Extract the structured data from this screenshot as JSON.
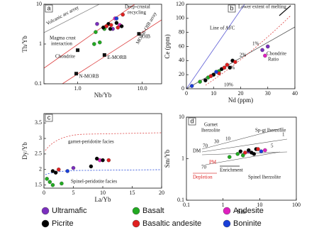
{
  "legend": [
    {
      "name": "Ultramafic",
      "color": "#7b2fbe"
    },
    {
      "name": "Basalt",
      "color": "#22aa22"
    },
    {
      "name": "Andesite",
      "color": "#e020c0"
    },
    {
      "name": "Picrite",
      "color": "#000000"
    },
    {
      "name": "Basaltic andesite",
      "color": "#e02020"
    },
    {
      "name": "Boninite",
      "color": "#1a3fd8"
    }
  ],
  "chart_data": [
    {
      "type": "scatter",
      "x_label": "Nb/Yb",
      "y_label": "Th/Yb",
      "xscale": "log",
      "yscale": "log",
      "xlim": [
        0.3,
        20
      ],
      "ylim": [
        0.1,
        10
      ],
      "xticks": [
        {
          "value": 1,
          "label": "1.0"
        },
        {
          "value": 10,
          "label": "10.0"
        }
      ],
      "yticks": [
        0.1,
        1,
        10
      ],
      "series": [
        {
          "color": "#7b2fbe",
          "x": [
            2.0,
            3.5
          ],
          "y": [
            3.2,
            2.4
          ]
        },
        {
          "color": "#22aa22",
          "x": [
            1.8,
            2.2,
            2.6,
            1.9
          ],
          "y": [
            1.0,
            1.1,
            2.4,
            2.0
          ]
        },
        {
          "color": "#e020c0",
          "x": [
            3.8,
            4.5
          ],
          "y": [
            4.4,
            3.0
          ]
        },
        {
          "color": "#000000",
          "x": [
            2.5,
            3.0,
            3.2,
            4.0,
            4.8
          ],
          "y": [
            2.6,
            3.2,
            2.4,
            3.4,
            2.8
          ]
        },
        {
          "color": "#e02020",
          "x": [
            2.8,
            3.3,
            4.2,
            5.0
          ],
          "y": [
            2.8,
            3.0,
            2.6,
            5.5
          ]
        },
        {
          "color": "#1a3fd8",
          "x": [
            4.0
          ],
          "y": [
            4.4
          ]
        }
      ],
      "references": [
        {
          "label": "N-MORB",
          "x": 0.95,
          "y": 0.18
        },
        {
          "label": "E-MORB",
          "x": 2.6,
          "y": 0.53
        },
        {
          "label": "OIB",
          "x": 8.9,
          "y": 1.8
        },
        {
          "x": 1.0,
          "y": 0.7
        }
      ],
      "annotations": [
        "a",
        "Volcanic arc array",
        "Deep-crustal",
        "recycling",
        "Magma crust",
        "interaction",
        "Chondrite",
        "MORB-OIB array"
      ]
    },
    {
      "type": "scatter",
      "x_label": "Nd (ppm)",
      "y_label": "Ce (ppm)",
      "xlim": [
        0,
        40
      ],
      "ylim": [
        0,
        120
      ],
      "xticks": [
        0,
        10,
        20,
        30,
        40
      ],
      "yticks": [
        0,
        20,
        40,
        60,
        80,
        100,
        120
      ],
      "series": [
        {
          "color": "#7b2fbe",
          "x": [
            28,
            30
          ],
          "y": [
            55,
            60
          ]
        },
        {
          "color": "#22aa22",
          "x": [
            5,
            8,
            10,
            12
          ],
          "y": [
            10,
            16,
            20,
            25
          ]
        },
        {
          "color": "#e020c0",
          "x": [
            29
          ],
          "y": [
            47
          ]
        },
        {
          "color": "#000000",
          "x": [
            7,
            10,
            13,
            16,
            17
          ],
          "y": [
            12,
            20,
            28,
            30,
            40
          ]
        },
        {
          "color": "#e02020",
          "x": [
            9,
            12,
            14,
            15,
            18
          ],
          "y": [
            18,
            22,
            30,
            34,
            38
          ]
        },
        {
          "color": "#1a3fd8",
          "x": [
            2,
            11
          ],
          "y": [
            4,
            24
          ]
        }
      ],
      "annotations": [
        "b",
        "Lower extent of melting",
        "Line of AFC",
        "1%",
        "2%",
        "5%",
        "10%",
        "Chondrite",
        "Ratio"
      ]
    },
    {
      "type": "scatter",
      "x_label": "La/Yb",
      "y_label": "Dy/Yb",
      "xlim": [
        0,
        20
      ],
      "ylim": [
        1.4,
        3.8
      ],
      "xticks": [
        0,
        5,
        10,
        15,
        20
      ],
      "yticks": [
        1.5,
        2,
        2.5,
        3,
        3.5
      ],
      "series": [
        {
          "color": "#7b2fbe",
          "x": [
            5
          ],
          "y": [
            2.05
          ]
        },
        {
          "color": "#22aa22",
          "x": [
            0.5,
            1,
            1.5,
            3
          ],
          "y": [
            1.7,
            1.6,
            1.5,
            1.55
          ]
        },
        {
          "color": "#e020c0",
          "x": [
            9.5
          ],
          "y": [
            2.3
          ]
        },
        {
          "color": "#000000",
          "x": [
            1.5,
            2,
            8,
            9,
            10
          ],
          "y": [
            1.95,
            1.9,
            2.1,
            2.35,
            2.3
          ]
        },
        {
          "color": "#e02020",
          "x": [
            2.5,
            11
          ],
          "y": [
            2.0,
            2.3
          ]
        },
        {
          "color": "#1a3fd8",
          "x": [
            4
          ],
          "y": [
            1.95
          ]
        }
      ],
      "annotations": [
        "c",
        "garnet-peridotite facies",
        "Spinel-peridotite facies"
      ]
    },
    {
      "type": "scatter",
      "x_label": "Sm",
      "y_label": "Sm/Yb",
      "xscale": "log",
      "yscale": "log",
      "xlim": [
        0.1,
        100
      ],
      "ylim": [
        0.1,
        10
      ],
      "xticks": [
        0.1,
        1,
        10,
        100
      ],
      "yticks": [
        0.1,
        1,
        10
      ],
      "series": [
        {
          "color": "#7b2fbe",
          "x": [
            5
          ],
          "y": [
            1.5
          ]
        },
        {
          "color": "#22aa22",
          "x": [
            1.5,
            2.5,
            3.5
          ],
          "y": [
            1.1,
            1.3,
            1.2
          ]
        },
        {
          "color": "#e020c0",
          "x": [
            14
          ],
          "y": [
            1.6
          ]
        },
        {
          "color": "#000000",
          "x": [
            3,
            5,
            6,
            8,
            7
          ],
          "y": [
            1.5,
            1.6,
            1.4,
            1.7,
            1.3
          ]
        },
        {
          "color": "#e02020",
          "x": [
            4,
            9
          ],
          "y": [
            1.4,
            1.7
          ]
        },
        {
          "color": "#1a3fd8",
          "x": [
            11
          ],
          "y": [
            1.5
          ]
        }
      ],
      "annotations": [
        "d",
        "Garnet",
        "lherzolite",
        "Sp-gt lherzolite",
        "DM",
        "PM",
        "Depletion",
        "Enrichment",
        "Spinel lherzolite",
        "70",
        "30",
        "10",
        "70",
        "5",
        "1"
      ]
    }
  ]
}
